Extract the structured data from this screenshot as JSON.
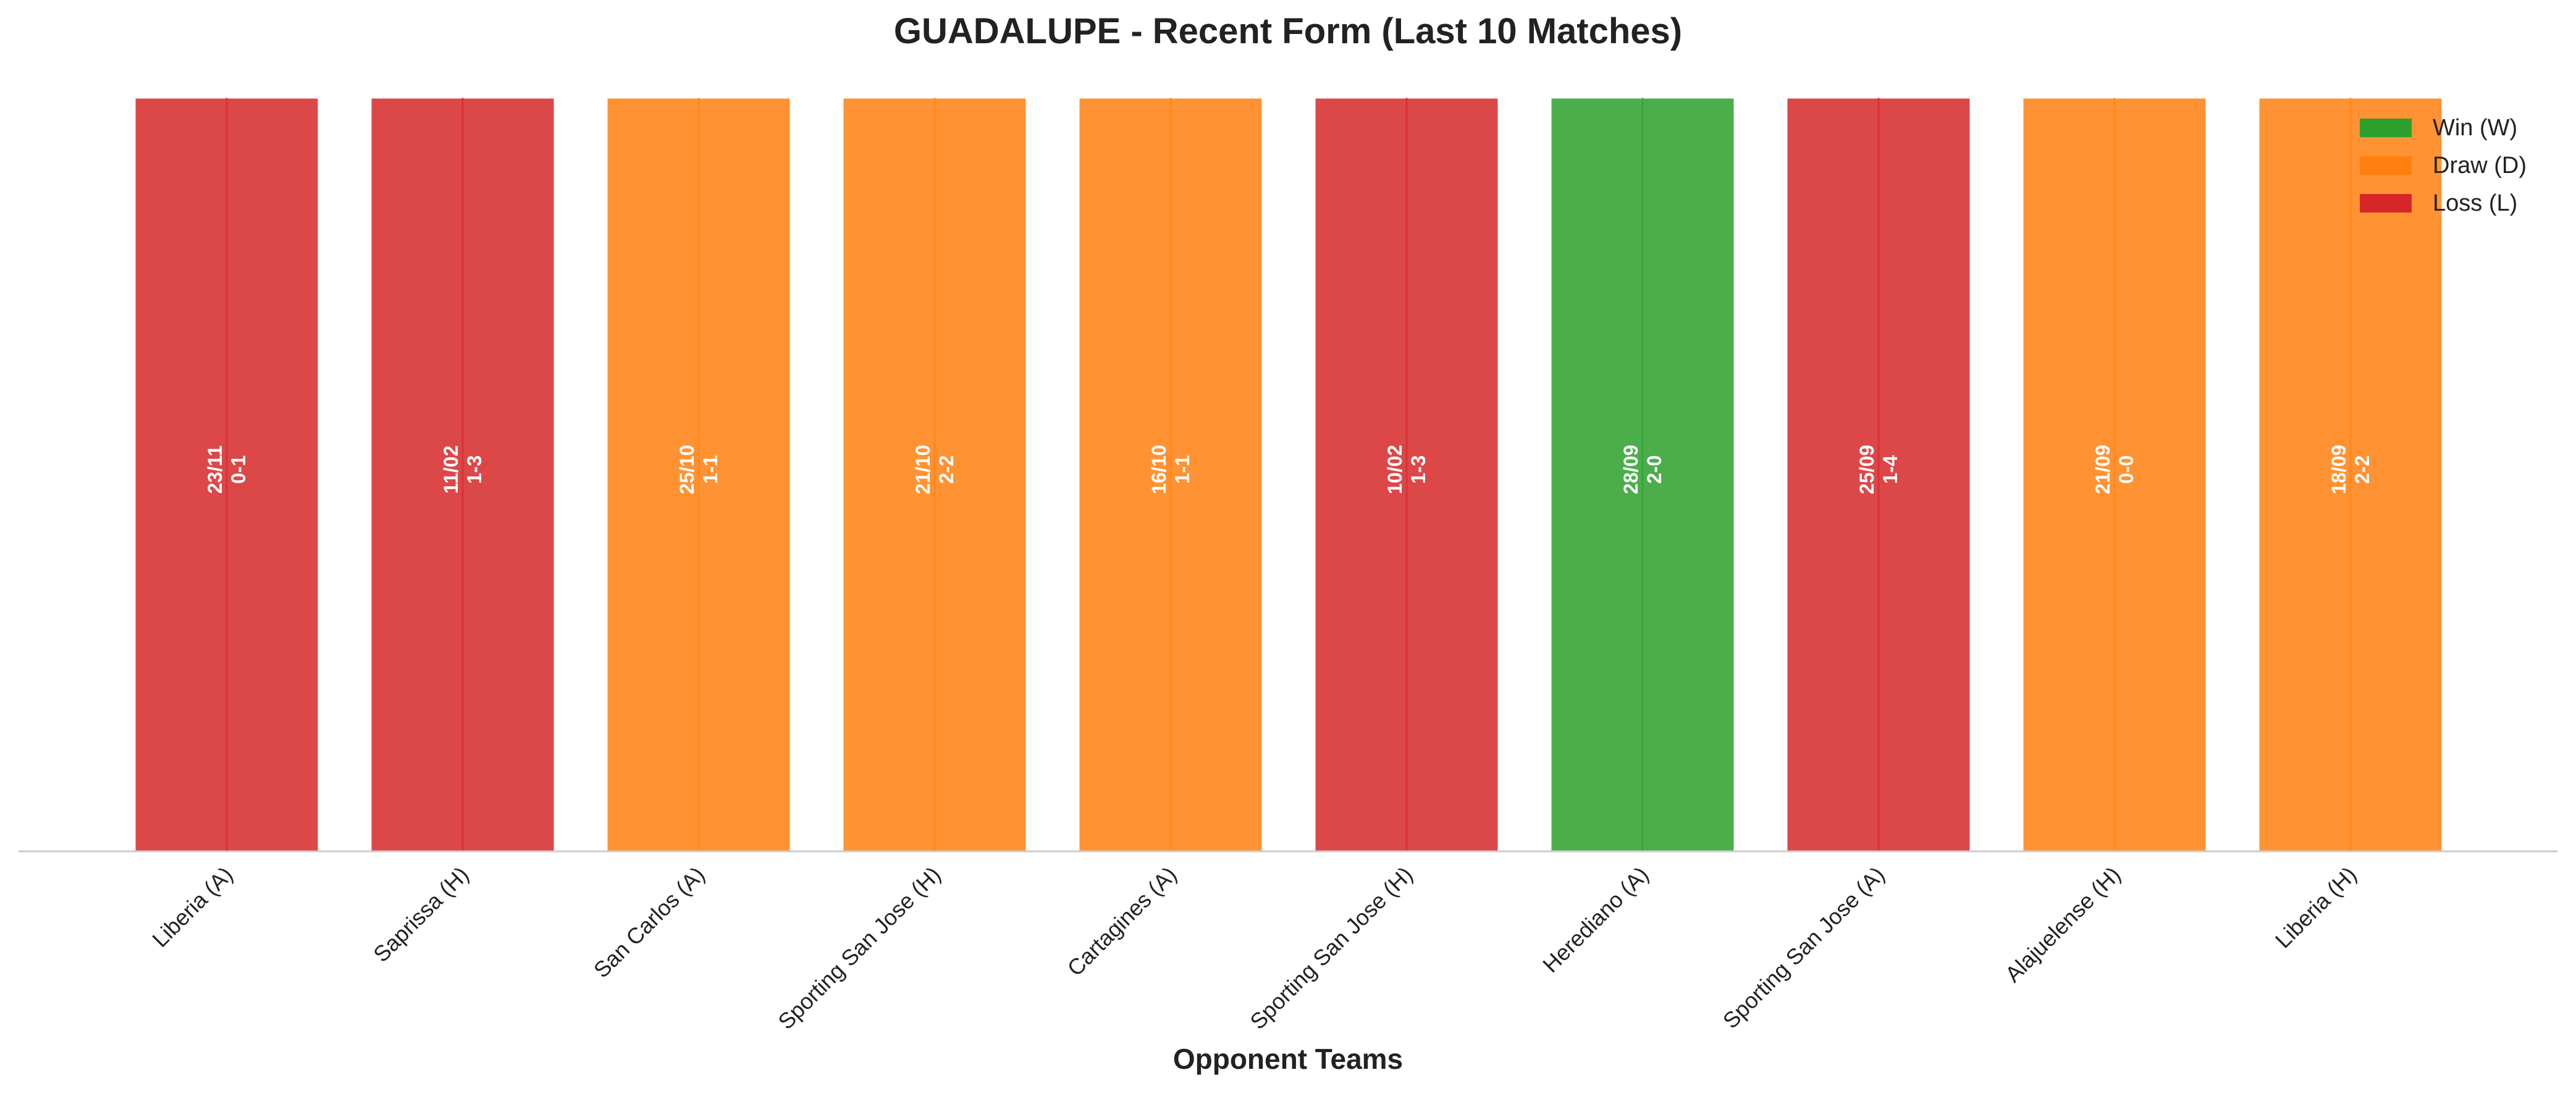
{
  "chart_data": {
    "type": "bar",
    "title": "GUADALUPE - Recent Form (Last 10 Matches)",
    "xlabel": "Opponent Teams",
    "ylabel": "",
    "categories": [
      "Liberia (A)",
      "Saprissa (H)",
      "San Carlos (A)",
      "Sporting San Jose (H)",
      "Cartagines (A)",
      "Sporting San Jose (H)",
      "Herediano (A)",
      "Sporting San Jose (A)",
      "Alajuelense (H)",
      "Liberia (H)"
    ],
    "matches": [
      {
        "opponent": "Liberia (A)",
        "date": "23/11",
        "score": "0-1",
        "result": "L"
      },
      {
        "opponent": "Saprissa (H)",
        "date": "11/02",
        "score": "1-3",
        "result": "L"
      },
      {
        "opponent": "San Carlos (A)",
        "date": "25/10",
        "score": "1-1",
        "result": "D"
      },
      {
        "opponent": "Sporting San Jose (H)",
        "date": "21/10",
        "score": "2-2",
        "result": "D"
      },
      {
        "opponent": "Cartagines (A)",
        "date": "16/10",
        "score": "1-1",
        "result": "D"
      },
      {
        "opponent": "Sporting San Jose (H)",
        "date": "10/02",
        "score": "1-3",
        "result": "L"
      },
      {
        "opponent": "Herediano (A)",
        "date": "28/09",
        "score": "2-0",
        "result": "W"
      },
      {
        "opponent": "Sporting San Jose (A)",
        "date": "25/09",
        "score": "1-4",
        "result": "L"
      },
      {
        "opponent": "Alajuelense (H)",
        "date": "21/09",
        "score": "0-0",
        "result": "D"
      },
      {
        "opponent": "Liberia (H)",
        "date": "18/09",
        "score": "2-2",
        "result": "D"
      }
    ],
    "values": [
      1,
      1,
      1,
      1,
      1,
      1,
      1,
      1,
      1,
      1
    ],
    "ylim": [
      0,
      1
    ],
    "grid": false,
    "legend": {
      "placement": "top-right",
      "entries": [
        {
          "key": "W",
          "label": "Win (W)",
          "color": "#2ca02c"
        },
        {
          "key": "D",
          "label": "Draw (D)",
          "color": "#ff7f0e"
        },
        {
          "key": "L",
          "label": "Loss (L)",
          "color": "#d62728"
        }
      ]
    },
    "colors": {
      "W": "#2ca02c",
      "D": "#ff7f0e",
      "L": "#d62728"
    }
  }
}
